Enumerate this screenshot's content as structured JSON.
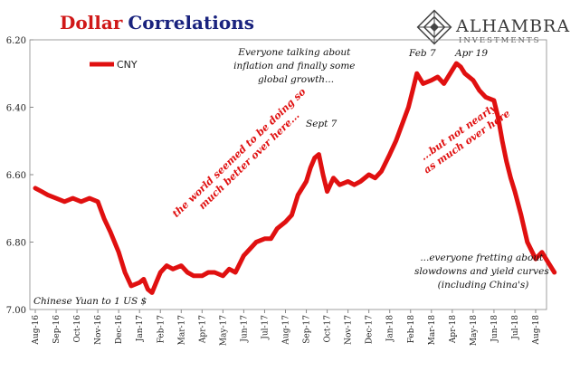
{
  "title": {
    "part1": "Dollar",
    "part2": "Correlations"
  },
  "brand": {
    "name": "ALHAMBRA",
    "sub": "INVESTMENTS"
  },
  "colors": {
    "series": "#e01010",
    "title1": "#d01818",
    "title2": "#1a237e",
    "annotation_red": "#e01010"
  },
  "chart_data": {
    "type": "line",
    "y_inverted": true,
    "ylim": [
      6.2,
      7.0
    ],
    "ytick_values": [
      6.2,
      6.4,
      6.6,
      6.8,
      7.0
    ],
    "ytick_labels": [
      "6.20",
      "6.40",
      "6.60",
      "6.80",
      "7.00"
    ],
    "x_tick_labels": [
      "Aug-16",
      "Sep-16",
      "Oct-16",
      "Nov-16",
      "Dec-16",
      "Jan-17",
      "Feb-17",
      "Mar-17",
      "Apr-17",
      "May-17",
      "Jun-17",
      "Jul-17",
      "Aug-17",
      "Sep-17",
      "Oct-17",
      "Nov-17",
      "Dec-17",
      "Jan-18",
      "Feb-18",
      "Mar-18",
      "Apr-18",
      "May-18",
      "Jun-18",
      "Jul-18",
      "Aug-18"
    ],
    "series": [
      {
        "name": "CNY",
        "points": [
          [
            0.0,
            6.64
          ],
          [
            0.3,
            6.65
          ],
          [
            0.6,
            6.66
          ],
          [
            1.0,
            6.67
          ],
          [
            1.4,
            6.68
          ],
          [
            1.8,
            6.67
          ],
          [
            2.2,
            6.68
          ],
          [
            2.6,
            6.67
          ],
          [
            3.0,
            6.68
          ],
          [
            3.3,
            6.73
          ],
          [
            3.6,
            6.77
          ],
          [
            4.0,
            6.83
          ],
          [
            4.3,
            6.89
          ],
          [
            4.6,
            6.93
          ],
          [
            5.0,
            6.92
          ],
          [
            5.2,
            6.91
          ],
          [
            5.4,
            6.94
          ],
          [
            5.6,
            6.95
          ],
          [
            5.8,
            6.92
          ],
          [
            6.0,
            6.89
          ],
          [
            6.3,
            6.87
          ],
          [
            6.6,
            6.88
          ],
          [
            7.0,
            6.87
          ],
          [
            7.3,
            6.89
          ],
          [
            7.6,
            6.9
          ],
          [
            8.0,
            6.9
          ],
          [
            8.3,
            6.89
          ],
          [
            8.6,
            6.89
          ],
          [
            9.0,
            6.9
          ],
          [
            9.3,
            6.88
          ],
          [
            9.6,
            6.89
          ],
          [
            10.0,
            6.84
          ],
          [
            10.3,
            6.82
          ],
          [
            10.6,
            6.8
          ],
          [
            11.0,
            6.79
          ],
          [
            11.3,
            6.79
          ],
          [
            11.6,
            6.76
          ],
          [
            12.0,
            6.74
          ],
          [
            12.3,
            6.72
          ],
          [
            12.6,
            6.66
          ],
          [
            13.0,
            6.62
          ],
          [
            13.2,
            6.58
          ],
          [
            13.4,
            6.55
          ],
          [
            13.6,
            6.54
          ],
          [
            13.8,
            6.6
          ],
          [
            14.0,
            6.65
          ],
          [
            14.3,
            6.61
          ],
          [
            14.6,
            6.63
          ],
          [
            15.0,
            6.62
          ],
          [
            15.3,
            6.63
          ],
          [
            15.6,
            6.62
          ],
          [
            16.0,
            6.6
          ],
          [
            16.3,
            6.61
          ],
          [
            16.6,
            6.59
          ],
          [
            17.0,
            6.54
          ],
          [
            17.3,
            6.5
          ],
          [
            17.6,
            6.45
          ],
          [
            17.9,
            6.4
          ],
          [
            18.1,
            6.35
          ],
          [
            18.3,
            6.3
          ],
          [
            18.6,
            6.33
          ],
          [
            19.0,
            6.32
          ],
          [
            19.3,
            6.31
          ],
          [
            19.6,
            6.33
          ],
          [
            20.0,
            6.29
          ],
          [
            20.2,
            6.27
          ],
          [
            20.4,
            6.28
          ],
          [
            20.6,
            6.3
          ],
          [
            21.0,
            6.32
          ],
          [
            21.3,
            6.35
          ],
          [
            21.6,
            6.37
          ],
          [
            22.0,
            6.38
          ],
          [
            22.2,
            6.43
          ],
          [
            22.4,
            6.5
          ],
          [
            22.6,
            6.56
          ],
          [
            22.8,
            6.61
          ],
          [
            23.0,
            6.65
          ],
          [
            23.3,
            6.72
          ],
          [
            23.6,
            6.8
          ],
          [
            24.0,
            6.85
          ],
          [
            24.3,
            6.83
          ],
          [
            24.6,
            6.86
          ],
          [
            24.9,
            6.89
          ]
        ]
      }
    ],
    "legend_label": "CNY",
    "legend_position": "top-left",
    "corner_label": "Chinese Yuan to 1 US $",
    "annotations": {
      "top": [
        "Everyone talking about",
        "inflation and finally some",
        "global growth..."
      ],
      "sept7": "Sept 7",
      "feb7": "Feb 7",
      "apr19": "Apr 19",
      "world": [
        "the world seemed to be doing so",
        "much better over here..."
      ],
      "not_nearly": [
        "...but not nearly",
        "as much over here"
      ],
      "fretting": [
        "...everyone fretting about",
        "slowdowns and yield curves",
        "(including China's)"
      ]
    }
  }
}
